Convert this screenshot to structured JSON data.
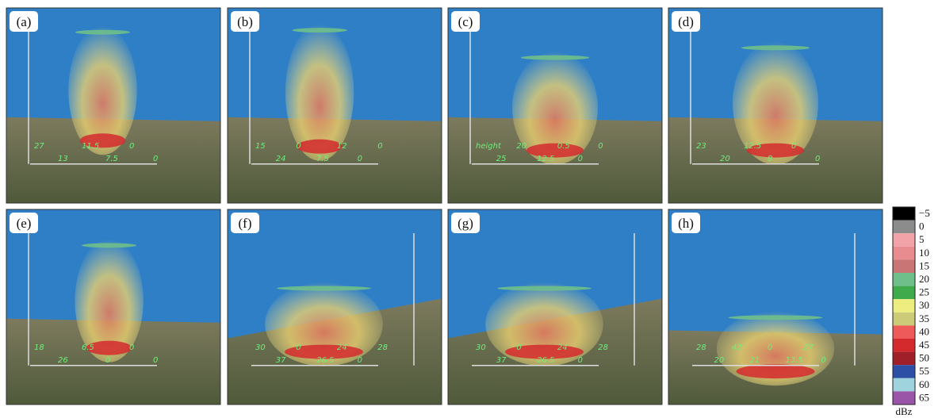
{
  "panels": [
    {
      "label": "(a)",
      "annotations": [
        "27",
        "13",
        "11.5",
        "7.5",
        "0",
        "0"
      ]
    },
    {
      "label": "(b)",
      "annotations": [
        "15",
        "24",
        "0",
        "7.5",
        "12",
        "0",
        "0"
      ]
    },
    {
      "label": "(c)",
      "annotations": [
        "height",
        "25",
        "20",
        "12.5",
        "0.5",
        "0",
        "0"
      ]
    },
    {
      "label": "(d)",
      "annotations": [
        "23",
        "20",
        "12.5",
        "8",
        "0",
        "0"
      ]
    },
    {
      "label": "(e)",
      "annotations": [
        "18",
        "26",
        "6.5",
        "0",
        "0",
        "0"
      ]
    },
    {
      "label": "(f)",
      "annotations": [
        "30",
        "37",
        "0",
        "26.5",
        "24",
        "0",
        "28"
      ]
    },
    {
      "label": "(g)",
      "annotations": [
        "30",
        "37",
        "0",
        "26.5",
        "24",
        "0",
        "28"
      ]
    },
    {
      "label": "(h)",
      "annotations": [
        "28",
        "20",
        "42",
        "21",
        "0",
        "13.5",
        "27",
        "0"
      ]
    }
  ],
  "colorbar": {
    "unit": "dBz",
    "levels": [
      {
        "value": -5,
        "label": "−5",
        "color": "#000000"
      },
      {
        "value": 0,
        "label": "0",
        "color": "#8c8c8c"
      },
      {
        "value": 5,
        "label": "5",
        "color": "#f2a3a8"
      },
      {
        "value": 10,
        "label": "10",
        "color": "#e88c90"
      },
      {
        "value": 15,
        "label": "15",
        "color": "#c97475"
      },
      {
        "value": 20,
        "label": "20",
        "color": "#6fbf8a"
      },
      {
        "value": 25,
        "label": "25",
        "color": "#3faa4c"
      },
      {
        "value": 30,
        "label": "30",
        "color": "#eeee80"
      },
      {
        "value": 35,
        "label": "35",
        "color": "#cccc78"
      },
      {
        "value": 40,
        "label": "40",
        "color": "#ee5a5a"
      },
      {
        "value": 45,
        "label": "45",
        "color": "#d42a2e"
      },
      {
        "value": 50,
        "label": "50",
        "color": "#a0202a"
      },
      {
        "value": 55,
        "label": "55",
        "color": "#2d4fa6"
      },
      {
        "value": 60,
        "label": "60",
        "color": "#9fd3dd"
      },
      {
        "value": 65,
        "label": "65",
        "color": "#9b55a8"
      }
    ]
  }
}
